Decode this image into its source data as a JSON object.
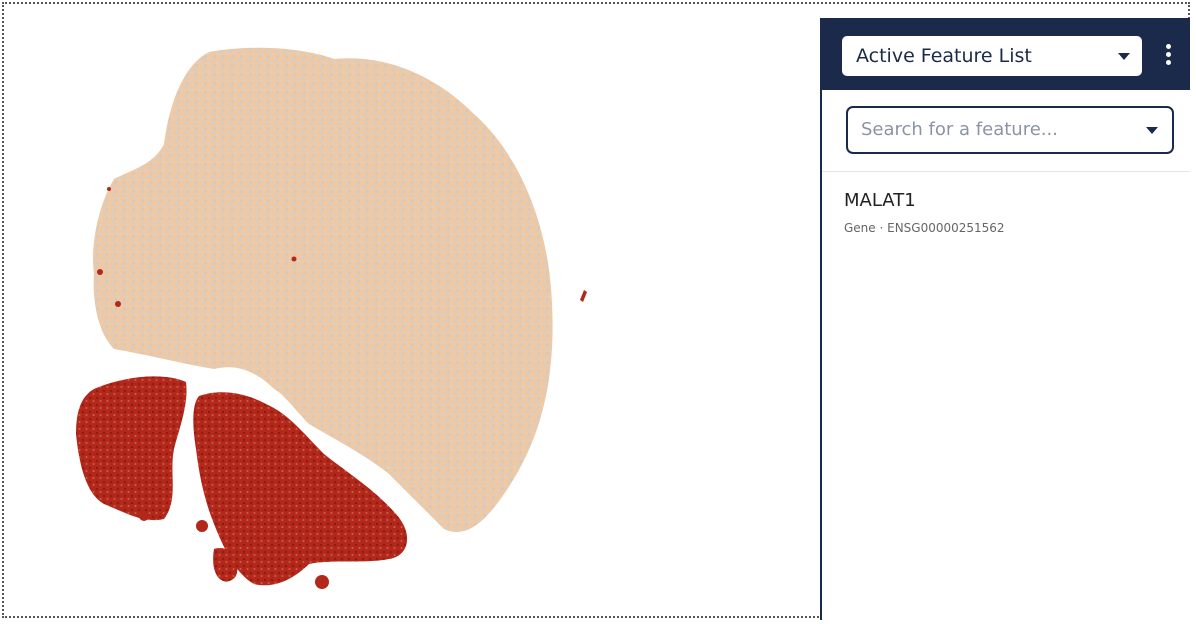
{
  "panel": {
    "dropdown": "Active Feature List",
    "search_placeholder": "Search for a feature...",
    "features": [
      {
        "name": "MALAT1",
        "description": "Gene · ENSG00000251562"
      }
    ]
  }
}
